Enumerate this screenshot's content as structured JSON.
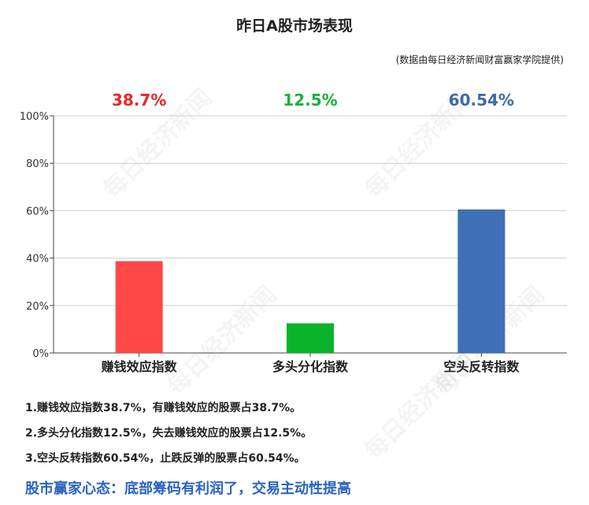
{
  "header": {
    "title": "昨日A股市场表现",
    "source": "(数据由每日经济新闻财富赢家学院提供)"
  },
  "watermark": "每日经济新闻",
  "chart_data": {
    "type": "bar",
    "categories": [
      "赚钱效应指数",
      "多头分化指数",
      "空头反转指数"
    ],
    "values": [
      38.7,
      12.5,
      60.54
    ],
    "value_labels": [
      "38.7%",
      "12.5%",
      "60.54%"
    ],
    "colors": [
      "#ff4848",
      "#0ab42a",
      "#3f6fb6"
    ],
    "label_colors": [
      "#e8262a",
      "#19b13a",
      "#3f6aa8"
    ],
    "ylim": [
      0,
      100
    ],
    "yticks": [
      "0%",
      "20%",
      "40%",
      "60%",
      "80%",
      "100%"
    ],
    "grid": true,
    "xlabel": "",
    "ylabel": ""
  },
  "notes": [
    "1.赚钱效应指数38.7%，有赚钱效应的股票占38.7%。",
    "2.多头分化指数12.5%，失去赚钱效应的股票占12.5%。",
    "3.空头反转指数60.54%，止跌反弹的股票占60.54%。"
  ],
  "conclusion": "股市赢家心态：底部筹码有利润了，交易主动性提高"
}
